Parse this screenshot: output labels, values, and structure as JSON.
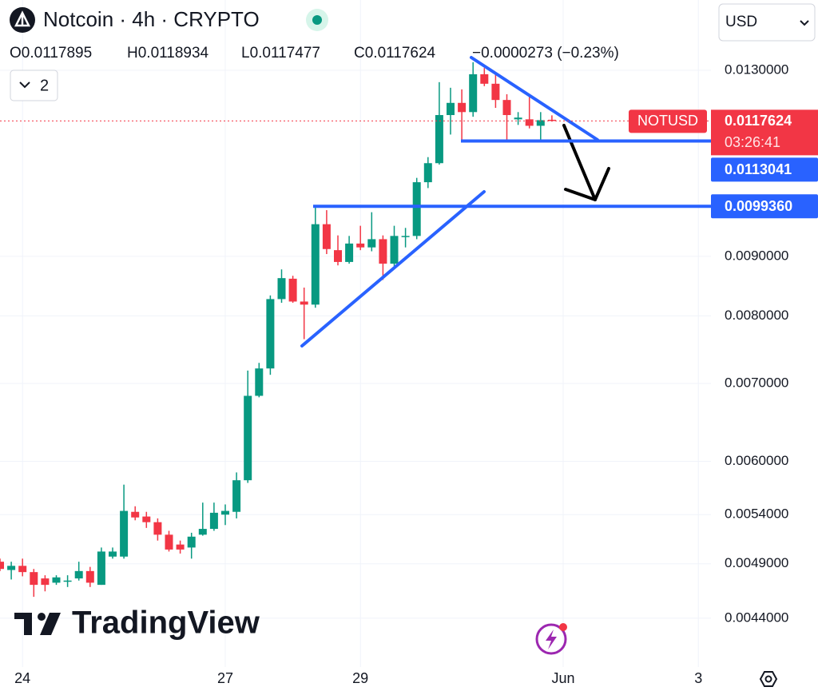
{
  "header": {
    "title": "Notcoin · 4h · CRYPTO",
    "ohlc": [
      "O0.0117895",
      "H0.0118934",
      "L0.0117477",
      "C0.0117624"
    ],
    "change": "−0.0000273 (−0.23%)",
    "indicators": "2",
    "currency": "USD"
  },
  "branding": "TradingView",
  "chart_data": {
    "type": "candlestick",
    "symbol": "NOTUSD",
    "countdown": "03:26:41",
    "categories": [
      null,
      null,
      "24",
      null,
      null,
      null,
      null,
      null,
      null,
      null,
      null,
      null,
      null,
      null,
      null,
      null,
      null,
      null,
      null,
      null,
      "27",
      null,
      null,
      null,
      null,
      null,
      null,
      null,
      null,
      null,
      null,
      null,
      "29",
      null,
      null,
      null,
      null,
      null,
      null,
      null,
      null,
      null,
      null,
      null,
      null,
      null,
      null,
      null,
      null,
      null,
      "Jun",
      null,
      null,
      null,
      null,
      null,
      null,
      null,
      null,
      null,
      null,
      null,
      "3"
    ],
    "open": [
      0.00492,
      0.00484,
      0.00488,
      0.00482,
      0.00476,
      0.00472,
      0.00474,
      0.00476,
      0.00483,
      0.0047,
      0.00497,
      0.00497,
      0.00543,
      0.00538,
      0.00532,
      0.00519,
      0.00509,
      0.00506,
      0.00519,
      0.00525,
      0.0054,
      0.00543,
      0.00578,
      0.00683,
      0.00721,
      0.00827,
      0.00861,
      0.00823,
      0.00818,
      0.00959,
      0.00911,
      0.0089,
      0.00923,
      0.00916,
      0.00931,
      0.00887,
      0.00937,
      0.00937,
      0.01042,
      0.01082,
      0.0119,
      0.01219,
      0.01197,
      0.0129,
      0.01266,
      0.01226,
      0.0118,
      0.0118,
      0.01165,
      0.0117895,
      null,
      null,
      null,
      null,
      null,
      null,
      null,
      null,
      null,
      null,
      null,
      null,
      null
    ],
    "high": [
      0.00495,
      0.00492,
      0.00495,
      0.00485,
      0.00479,
      0.00479,
      0.00479,
      0.00492,
      0.00487,
      0.00506,
      0.00506,
      0.00573,
      0.00549,
      0.00543,
      0.00536,
      0.00523,
      0.00513,
      0.00521,
      0.00553,
      0.00553,
      0.00551,
      0.00587,
      0.00718,
      0.00729,
      0.00833,
      0.00877,
      0.00866,
      0.00846,
      0.00992,
      0.00986,
      0.00938,
      0.00937,
      0.00956,
      0.00982,
      0.00938,
      0.00956,
      0.00952,
      0.01051,
      0.01095,
      0.0127,
      0.01256,
      0.01252,
      0.01321,
      0.01306,
      0.01296,
      0.0124,
      0.01197,
      0.0124,
      0.01197,
      0.0118934,
      null,
      null,
      null,
      null,
      null,
      null,
      null,
      null,
      null,
      null,
      null,
      null,
      null
    ],
    "low": [
      0.00483,
      0.00475,
      0.00478,
      0.00459,
      0.00464,
      0.0047,
      0.00468,
      0.00474,
      0.00468,
      0.0047,
      0.00495,
      0.00495,
      0.00534,
      0.00526,
      0.00513,
      0.00502,
      0.005,
      0.00495,
      0.00518,
      0.00523,
      0.00529,
      0.00536,
      0.00575,
      0.00681,
      0.00712,
      0.00821,
      0.00821,
      0.00764,
      0.00813,
      0.00904,
      0.00884,
      0.00887,
      0.00911,
      0.00909,
      0.00859,
      0.00883,
      0.00916,
      0.00931,
      0.0103,
      0.01079,
      0.01145,
      0.01128,
      0.01186,
      0.0126,
      0.01207,
      0.01131,
      0.01167,
      0.01159,
      0.01131,
      0.0117477,
      null,
      null,
      null,
      null,
      null,
      null,
      null,
      null,
      null,
      null,
      null,
      null,
      null
    ],
    "close": [
      0.00485,
      0.00488,
      0.00482,
      0.0047,
      0.0047,
      0.00477,
      0.00474,
      0.00483,
      0.00472,
      0.00502,
      0.00502,
      0.00544,
      0.00537,
      0.00532,
      0.00519,
      0.00504,
      0.00504,
      0.00517,
      0.00525,
      0.00542,
      0.00544,
      0.00578,
      0.00683,
      0.00721,
      0.00827,
      0.00862,
      0.00823,
      0.00818,
      0.00959,
      0.00913,
      0.0089,
      0.00923,
      0.00916,
      0.00931,
      0.00887,
      0.00937,
      0.00937,
      0.01042,
      0.01082,
      0.0119,
      0.01219,
      0.01197,
      0.0129,
      0.01266,
      0.01226,
      0.0119,
      0.01184,
      0.01165,
      0.01178,
      0.0117624,
      null,
      null,
      null,
      null,
      null,
      null,
      null,
      null,
      null,
      null,
      null,
      null,
      null
    ],
    "up_color": "#089981",
    "down_color": "#f23645",
    "line_color": "#2962ff",
    "log_scale": true,
    "grid": true,
    "ylim": [
      0.003995,
      0.01494
    ],
    "yticks": [
      {
        "value": 0.013,
        "label": "0.0130000"
      },
      {
        "value": 0.009,
        "label": "0.0090000"
      },
      {
        "value": 0.008,
        "label": "0.0080000"
      },
      {
        "value": 0.007,
        "label": "0.0070000"
      },
      {
        "value": 0.006,
        "label": "0.0060000"
      },
      {
        "value": 0.0054,
        "label": "0.0054000"
      },
      {
        "value": 0.0049,
        "label": "0.0049000"
      },
      {
        "value": 0.0044,
        "label": "0.0044000"
      }
    ],
    "price_lines": [
      0.0113041,
      {
        "value": 0.009936,
        "label": "0.0099360"
      }
    ]
  }
}
